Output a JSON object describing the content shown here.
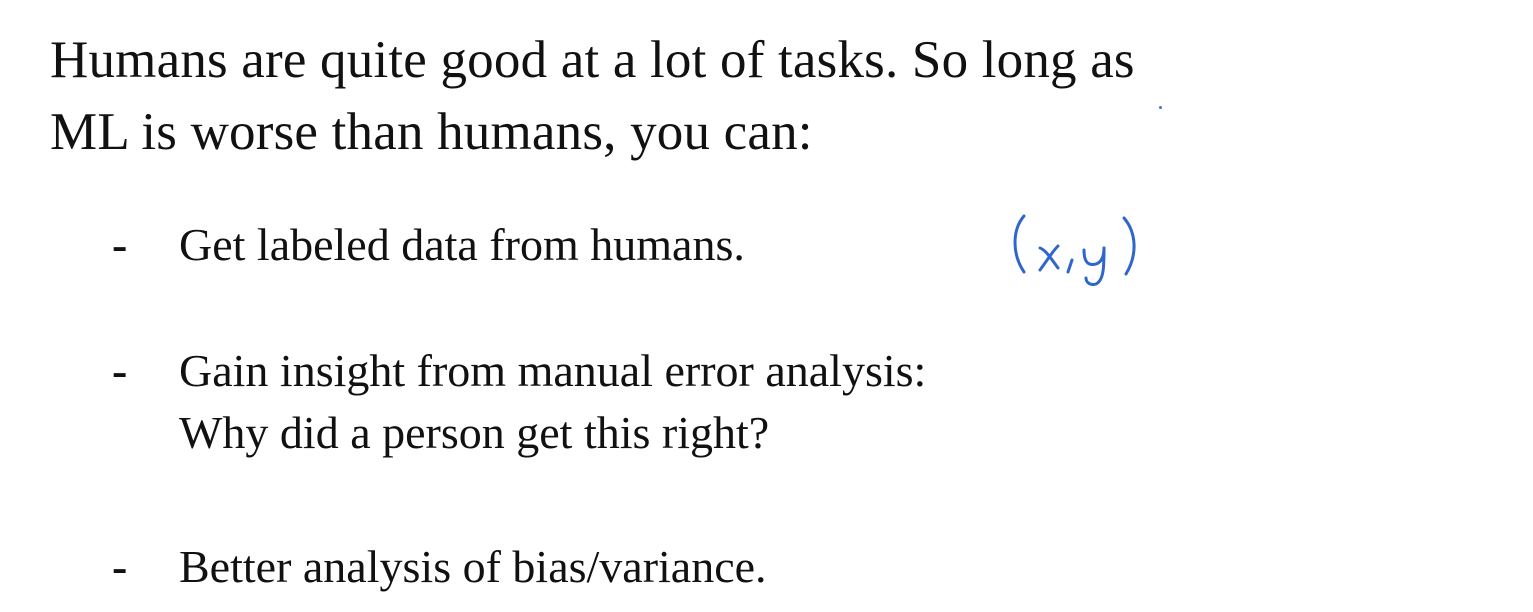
{
  "heading": {
    "line1": "Humans are quite good at a lot of tasks. So long as",
    "line2": "ML is worse than humans, you can:"
  },
  "bullets": [
    {
      "marker": "-",
      "lines": [
        "Get labeled data from humans."
      ]
    },
    {
      "marker": "-",
      "lines": [
        "Gain insight from manual error analysis:",
        "Why did a person get this right?"
      ]
    },
    {
      "marker": "-",
      "lines": [
        "Better analysis of bias/variance."
      ]
    }
  ],
  "annotation": {
    "handwritten_text": "(x,y)",
    "ink_color": "#2f66cc"
  }
}
